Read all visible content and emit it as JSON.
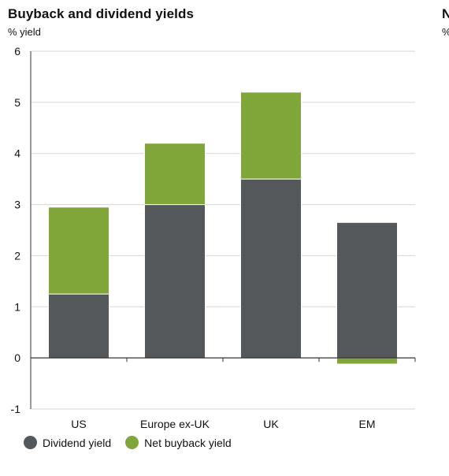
{
  "chart_data": {
    "type": "bar",
    "stacked": true,
    "title": "Buyback and dividend yields",
    "ylabel": "% yield",
    "categories": [
      "US",
      "Europe ex-UK",
      "UK",
      "EM"
    ],
    "series": [
      {
        "name": "Dividend yield",
        "values": [
          1.25,
          3.0,
          3.5,
          2.65
        ]
      },
      {
        "name": "Net buyback yield",
        "values": [
          1.7,
          1.2,
          1.7,
          -0.12
        ]
      }
    ],
    "ylim": [
      -1,
      6
    ],
    "yticks": [
      -1,
      0,
      1,
      2,
      3,
      4,
      5,
      6
    ],
    "grid": true,
    "legend_position": "bottom-left"
  },
  "colors": {
    "dividend": "#54585a",
    "buyback": "#80a539",
    "grid": "#d6d6d6",
    "axis": "#333333"
  },
  "next_panel": {
    "title_fragment": "N",
    "subtitle_fragment": "%"
  }
}
